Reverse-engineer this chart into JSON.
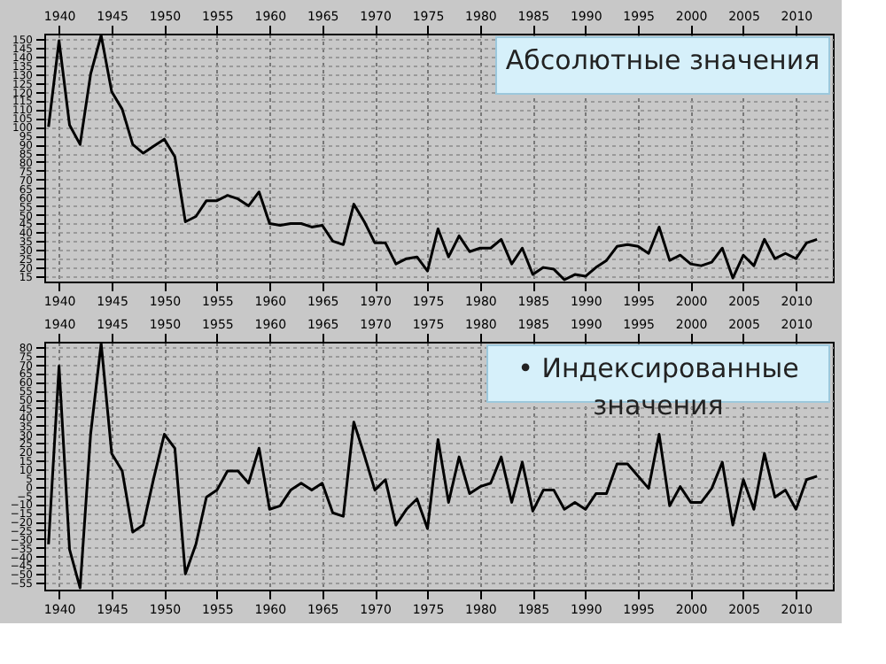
{
  "chart_data": [
    {
      "type": "line",
      "title": "Абсолютные значения",
      "x": [
        1939,
        1940,
        1941,
        1942,
        1943,
        1944,
        1945,
        1946,
        1947,
        1948,
        1949,
        1950,
        1951,
        1952,
        1953,
        1954,
        1955,
        1956,
        1957,
        1958,
        1959,
        1960,
        1961,
        1962,
        1963,
        1964,
        1965,
        1966,
        1967,
        1968,
        1969,
        1970,
        1971,
        1972,
        1973,
        1974,
        1975,
        1976,
        1977,
        1978,
        1979,
        1980,
        1981,
        1982,
        1983,
        1984,
        1985,
        1986,
        1987,
        1988,
        1989,
        1990,
        1991,
        1992,
        1993,
        1994,
        1995,
        1996,
        1997,
        1998,
        1999,
        2000,
        2001,
        2002,
        2003,
        2004,
        2005,
        2006,
        2007,
        2008,
        2009,
        2010,
        2011,
        2012
      ],
      "series": [
        {
          "color": "#000000",
          "values": [
            100,
            149,
            101,
            90,
            130,
            152,
            120,
            110,
            90,
            85,
            89,
            93,
            83,
            46,
            49,
            58,
            58,
            61,
            59,
            55,
            63,
            45,
            44,
            45,
            45,
            43,
            44,
            35,
            33,
            56,
            46,
            34,
            34,
            22,
            25,
            26,
            18,
            42,
            26,
            38,
            29,
            31,
            31,
            36,
            22,
            31,
            16,
            20,
            19,
            13,
            16,
            15,
            20,
            24,
            32,
            33,
            32,
            28,
            43,
            24,
            27,
            22,
            21,
            23,
            31,
            14,
            27,
            21,
            36,
            25,
            28,
            25,
            34,
            36
          ]
        }
      ],
      "xlim": [
        1938.6,
        2013.5
      ],
      "xticks": [
        1940,
        1945,
        1950,
        1955,
        1960,
        1965,
        1970,
        1975,
        1980,
        1985,
        1990,
        1995,
        2000,
        2005,
        2010
      ],
      "x2lim": [
        1938.6,
        2013.5
      ],
      "x2ticks": [
        1940,
        1945,
        1950,
        1955,
        1960,
        1965,
        1970,
        1975,
        1980,
        1985,
        1990,
        1995,
        2000,
        2005,
        2010
      ],
      "ylim": [
        12,
        153
      ],
      "yticks": [
        15,
        20,
        25,
        30,
        35,
        40,
        45,
        50,
        55,
        60,
        65,
        70,
        75,
        80,
        85,
        90,
        95,
        100,
        105,
        110,
        115,
        120,
        125,
        130,
        135,
        140,
        145,
        150
      ],
      "grid": true
    },
    {
      "type": "line",
      "title": "• Индексированные\nзначения",
      "x": [
        1939,
        1940,
        1941,
        1942,
        1943,
        1944,
        1945,
        1946,
        1947,
        1948,
        1949,
        1950,
        1951,
        1952,
        1953,
        1954,
        1955,
        1956,
        1957,
        1958,
        1959,
        1960,
        1961,
        1962,
        1963,
        1964,
        1965,
        1966,
        1967,
        1968,
        1969,
        1970,
        1971,
        1972,
        1973,
        1974,
        1975,
        1976,
        1977,
        1978,
        1979,
        1980,
        1981,
        1982,
        1983,
        1984,
        1985,
        1986,
        1987,
        1988,
        1989,
        1990,
        1991,
        1992,
        1993,
        1994,
        1995,
        1996,
        1997,
        1998,
        1999,
        2000,
        2001,
        2002,
        2003,
        2004,
        2005,
        2006,
        2007,
        2008,
        2009,
        2010,
        2011,
        2012
      ],
      "series": [
        {
          "color": "#000000",
          "values": [
            -33,
            69,
            -36,
            -58,
            30,
            82,
            19,
            9,
            -26,
            -22,
            5,
            30,
            22,
            -50,
            -33,
            -6,
            -2,
            9,
            9,
            2,
            22,
            -13,
            -11,
            -2,
            2,
            -2,
            2,
            -15,
            -17,
            37,
            18,
            -2,
            4,
            -22,
            -13,
            -7,
            -24,
            27,
            -9,
            17,
            -4,
            0,
            2,
            17,
            -9,
            14,
            -14,
            -2,
            -2,
            -13,
            -9,
            -13,
            -4,
            -4,
            13,
            13,
            6,
            -1,
            30,
            -11,
            0,
            -9,
            -9,
            -1,
            14,
            -22,
            4,
            -13,
            19,
            -6,
            -2,
            -13,
            4,
            6
          ]
        }
      ],
      "xlim": [
        1938.6,
        2013.5
      ],
      "xticks": [
        1940,
        1945,
        1950,
        1955,
        1960,
        1965,
        1970,
        1975,
        1980,
        1985,
        1990,
        1995,
        2000,
        2005,
        2010
      ],
      "x2lim": [
        1938.6,
        2013.5
      ],
      "x2ticks": [
        1940,
        1945,
        1950,
        1955,
        1960,
        1965,
        1970,
        1975,
        1980,
        1985,
        1990,
        1995,
        2000,
        2005,
        2010
      ],
      "ylim": [
        -59,
        83
      ],
      "yticks": [
        -55,
        -50,
        -45,
        -40,
        -35,
        -30,
        -25,
        -20,
        -15,
        -10,
        -5,
        0,
        5,
        10,
        15,
        20,
        25,
        30,
        35,
        40,
        45,
        50,
        55,
        60,
        65,
        70,
        75,
        80
      ],
      "grid": true
    }
  ]
}
